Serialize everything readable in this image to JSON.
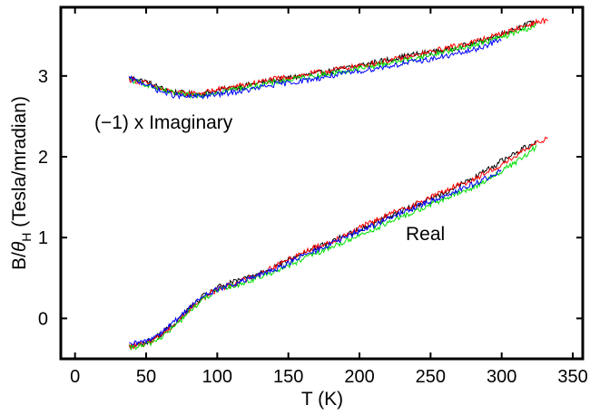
{
  "chart_data": {
    "type": "line",
    "xlabel": "T  (K)",
    "ylabel_main": "B/",
    "ylabel_symbol": "θ",
    "ylabel_sub": "H",
    "ylabel_units": " (Tesla/mradian)",
    "xlim": [
      -10,
      357
    ],
    "ylim": [
      -0.5,
      3.85
    ],
    "xticks": [
      0,
      50,
      100,
      150,
      200,
      250,
      300,
      350
    ],
    "yticks": [
      0,
      1,
      2,
      3
    ],
    "xtick_labels": [
      "0",
      "50",
      "100",
      "150",
      "200",
      "250",
      "300",
      "350"
    ],
    "ytick_labels": [
      "0",
      "1",
      "2",
      "3"
    ],
    "grid": false,
    "legend": "none",
    "annotations": {
      "imaginary": "(−1) x Imaginary",
      "real": "Real"
    },
    "series": [
      {
        "group": "imaginary",
        "color": "#000000",
        "x": [
          38,
          50,
          60,
          70,
          80,
          90,
          100,
          120,
          140,
          160,
          180,
          200,
          220,
          240,
          260,
          280,
          300,
          320,
          325
        ],
        "y": [
          2.98,
          2.93,
          2.85,
          2.8,
          2.78,
          2.78,
          2.82,
          2.88,
          2.95,
          3.0,
          3.06,
          3.13,
          3.2,
          3.27,
          3.32,
          3.4,
          3.52,
          3.65,
          3.68
        ]
      },
      {
        "group": "imaginary",
        "color": "#ff0000",
        "x": [
          38,
          50,
          60,
          70,
          80,
          90,
          100,
          120,
          140,
          160,
          180,
          200,
          220,
          240,
          260,
          280,
          300,
          320,
          333
        ],
        "y": [
          2.96,
          2.91,
          2.84,
          2.79,
          2.78,
          2.79,
          2.83,
          2.89,
          2.96,
          3.01,
          3.07,
          3.12,
          3.19,
          3.25,
          3.34,
          3.42,
          3.52,
          3.64,
          3.7
        ]
      },
      {
        "group": "imaginary",
        "color": "#00e000",
        "x": [
          38,
          50,
          60,
          70,
          80,
          90,
          100,
          120,
          140,
          160,
          180,
          200,
          220,
          240,
          260,
          280,
          300,
          320,
          325
        ],
        "y": [
          2.95,
          2.9,
          2.83,
          2.78,
          2.76,
          2.77,
          2.8,
          2.86,
          2.92,
          2.98,
          3.03,
          3.09,
          3.16,
          3.22,
          3.3,
          3.38,
          3.48,
          3.6,
          3.63
        ]
      },
      {
        "group": "imaginary",
        "color": "#0000ff",
        "x": [
          38,
          50,
          60,
          70,
          80,
          90,
          100,
          120,
          140,
          160,
          180,
          200,
          220,
          240,
          260,
          280,
          300
        ],
        "y": [
          2.97,
          2.9,
          2.81,
          2.76,
          2.74,
          2.75,
          2.77,
          2.82,
          2.89,
          2.94,
          3.0,
          3.06,
          3.12,
          3.18,
          3.24,
          3.32,
          3.45
        ]
      },
      {
        "group": "real",
        "color": "#000000",
        "x": [
          38,
          50,
          60,
          70,
          80,
          90,
          100,
          120,
          140,
          160,
          180,
          200,
          220,
          240,
          260,
          280,
          300,
          310,
          325
        ],
        "y": [
          -0.36,
          -0.3,
          -0.2,
          -0.06,
          0.12,
          0.27,
          0.38,
          0.5,
          0.64,
          0.8,
          0.95,
          1.1,
          1.26,
          1.4,
          1.56,
          1.73,
          1.95,
          2.05,
          2.2
        ]
      },
      {
        "group": "real",
        "color": "#ff0000",
        "x": [
          38,
          50,
          60,
          70,
          80,
          90,
          100,
          120,
          140,
          160,
          180,
          200,
          220,
          240,
          260,
          280,
          300,
          320,
          333
        ],
        "y": [
          -0.35,
          -0.31,
          -0.21,
          -0.08,
          0.1,
          0.25,
          0.36,
          0.48,
          0.64,
          0.82,
          0.95,
          1.12,
          1.28,
          1.42,
          1.58,
          1.72,
          1.9,
          2.12,
          2.25
        ]
      },
      {
        "group": "real",
        "color": "#00e000",
        "x": [
          38,
          50,
          60,
          70,
          80,
          90,
          100,
          120,
          140,
          160,
          180,
          200,
          220,
          240,
          260,
          280,
          300,
          320,
          325
        ],
        "y": [
          -0.37,
          -0.33,
          -0.24,
          -0.1,
          0.08,
          0.24,
          0.34,
          0.45,
          0.58,
          0.73,
          0.88,
          1.03,
          1.18,
          1.33,
          1.48,
          1.62,
          1.82,
          2.05,
          2.15
        ]
      },
      {
        "group": "real",
        "color": "#0000ff",
        "x": [
          38,
          50,
          60,
          70,
          80,
          90,
          100,
          120,
          140,
          160,
          180,
          200,
          220,
          240,
          260,
          280,
          300
        ],
        "y": [
          -0.33,
          -0.28,
          -0.18,
          -0.04,
          0.13,
          0.27,
          0.36,
          0.47,
          0.6,
          0.77,
          0.92,
          1.08,
          1.23,
          1.38,
          1.52,
          1.66,
          1.82
        ]
      }
    ]
  }
}
